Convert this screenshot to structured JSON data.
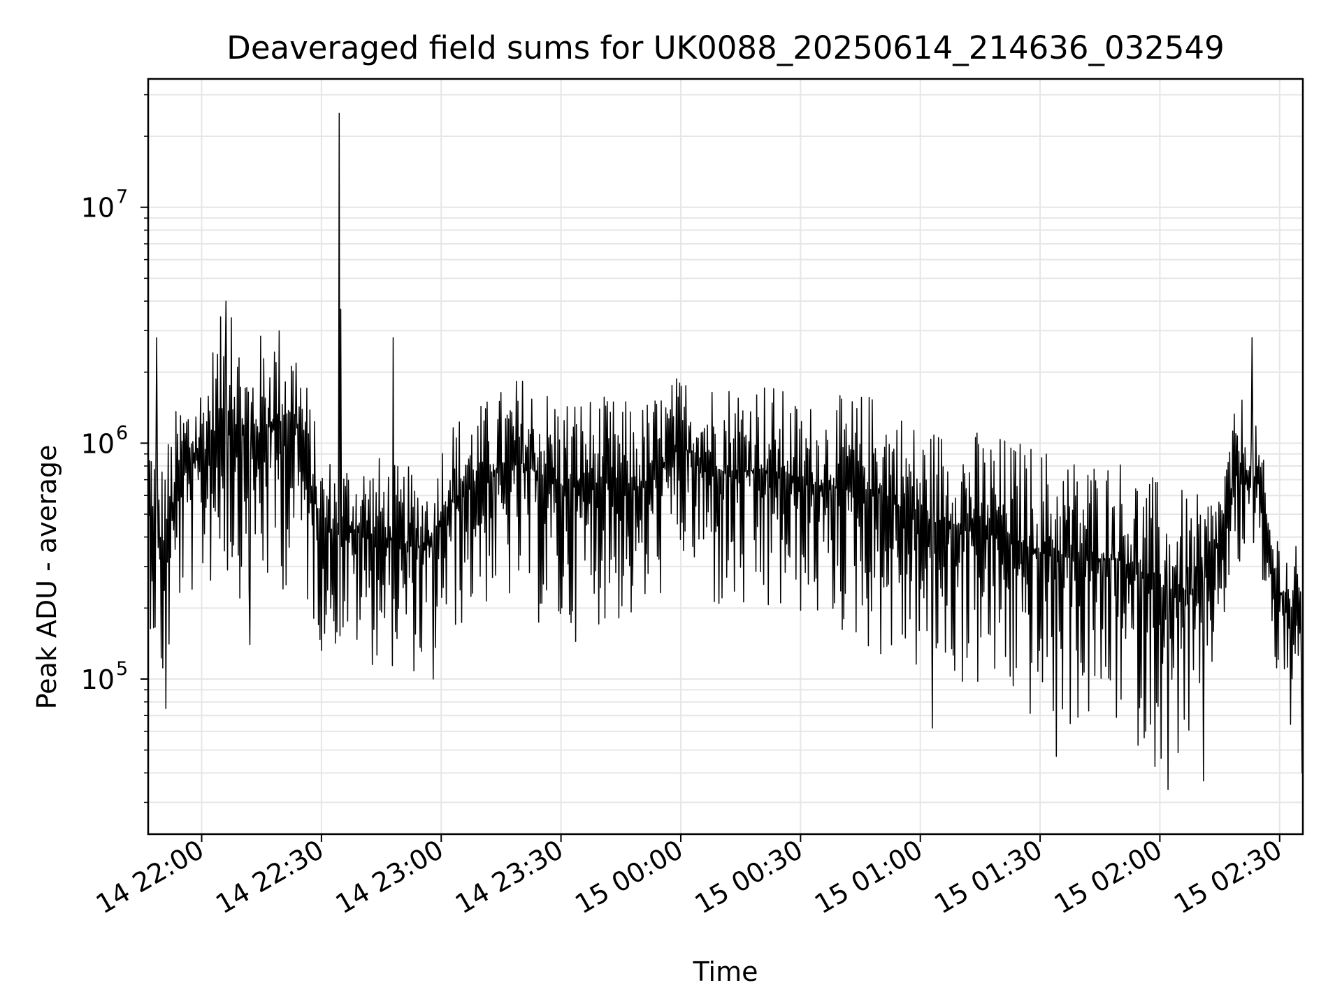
{
  "chart_data": {
    "type": "line",
    "title": "Deaveraged field sums for UK0088_20250614_214636_032549",
    "xlabel": "Time",
    "ylabel": "Peak ADU - average",
    "yscale": "log",
    "xlim": [
      "2025-06-14 21:46:36",
      "2025-06-15 02:35:49"
    ],
    "ylim": [
      22000,
      35000000
    ],
    "grid": true,
    "legend": "none",
    "line_color": "#000000",
    "grid_color": "#e6e6e6",
    "x_ticks": [
      {
        "t": "2025-06-14 22:00",
        "label": "14 22:00"
      },
      {
        "t": "2025-06-14 22:30",
        "label": "14 22:30"
      },
      {
        "t": "2025-06-14 23:00",
        "label": "14 23:00"
      },
      {
        "t": "2025-06-14 23:30",
        "label": "14 23:30"
      },
      {
        "t": "2025-06-15 00:00",
        "label": "15 00:00"
      },
      {
        "t": "2025-06-15 00:30",
        "label": "15 00:30"
      },
      {
        "t": "2025-06-15 01:00",
        "label": "15 01:00"
      },
      {
        "t": "2025-06-15 01:30",
        "label": "15 01:30"
      },
      {
        "t": "2025-06-15 02:00",
        "label": "15 02:00"
      },
      {
        "t": "2025-06-15 02:30",
        "label": "15 02:30"
      }
    ],
    "y_ticks": [
      {
        "value": 100000,
        "base": "10",
        "exp": "5"
      },
      {
        "value": 1000000,
        "base": "10",
        "exp": "6"
      },
      {
        "value": 10000000,
        "base": "10",
        "exp": "7"
      }
    ],
    "envelope": [
      {
        "t": "2025-06-14 21:46:36",
        "low": 190000,
        "high": 1300000
      },
      {
        "t": "2025-06-14 21:50",
        "low": 75000,
        "high": 900000
      },
      {
        "t": "2025-06-14 21:55",
        "low": 200000,
        "high": 1700000
      },
      {
        "t": "2025-06-14 22:00",
        "low": 230000,
        "high": 2000000
      },
      {
        "t": "2025-06-14 22:06",
        "low": 250000,
        "high": 4000000
      },
      {
        "t": "2025-06-14 22:12",
        "low": 200000,
        "high": 2600000
      },
      {
        "t": "2025-06-14 22:18",
        "low": 220000,
        "high": 3500000
      },
      {
        "t": "2025-06-14 22:24",
        "low": 250000,
        "high": 3000000
      },
      {
        "t": "2025-06-14 22:30",
        "low": 130000,
        "high": 900000
      },
      {
        "t": "2025-06-14 22:37",
        "low": 130000,
        "high": 900000
      },
      {
        "t": "2025-06-14 22:44",
        "low": 110000,
        "high": 900000
      },
      {
        "t": "2025-06-14 22:50",
        "low": 110000,
        "high": 800000
      },
      {
        "t": "2025-06-14 22:56",
        "low": 100000,
        "high": 800000
      },
      {
        "t": "2025-06-14 23:02",
        "low": 140000,
        "high": 1300000
      },
      {
        "t": "2025-06-14 23:10",
        "low": 200000,
        "high": 1500000
      },
      {
        "t": "2025-06-14 23:20",
        "low": 200000,
        "high": 2000000
      },
      {
        "t": "2025-06-14 23:30",
        "low": 130000,
        "high": 1700000
      },
      {
        "t": "2025-06-14 23:40",
        "low": 170000,
        "high": 1600000
      },
      {
        "t": "2025-06-14 23:50",
        "low": 160000,
        "high": 1500000
      },
      {
        "t": "2025-06-15 00:00",
        "low": 300000,
        "high": 2000000
      },
      {
        "t": "2025-06-15 00:10",
        "low": 170000,
        "high": 1900000
      },
      {
        "t": "2025-06-15 00:20",
        "low": 160000,
        "high": 2000000
      },
      {
        "t": "2025-06-15 00:30",
        "low": 180000,
        "high": 1500000
      },
      {
        "t": "2025-06-15 00:40",
        "low": 150000,
        "high": 1600000
      },
      {
        "t": "2025-06-15 00:50",
        "low": 120000,
        "high": 1700000
      },
      {
        "t": "2025-06-15 01:00",
        "low": 100000,
        "high": 1200000
      },
      {
        "t": "2025-06-15 01:10",
        "low": 90000,
        "high": 1200000
      },
      {
        "t": "2025-06-15 01:20",
        "low": 80000,
        "high": 1100000
      },
      {
        "t": "2025-06-15 01:30",
        "low": 60000,
        "high": 1000000
      },
      {
        "t": "2025-06-15 01:40",
        "low": 60000,
        "high": 900000
      },
      {
        "t": "2025-06-15 01:50",
        "low": 60000,
        "high": 900000
      },
      {
        "t": "2025-06-15 02:00",
        "low": 40000,
        "high": 700000
      },
      {
        "t": "2025-06-15 02:10",
        "low": 50000,
        "high": 600000
      },
      {
        "t": "2025-06-15 02:15",
        "low": 150000,
        "high": 700000
      },
      {
        "t": "2025-06-15 02:20",
        "low": 250000,
        "high": 1700000
      },
      {
        "t": "2025-06-15 02:25",
        "low": 300000,
        "high": 1100000
      },
      {
        "t": "2025-06-15 02:28",
        "low": 120000,
        "high": 500000
      },
      {
        "t": "2025-06-15 02:32",
        "low": 60000,
        "high": 400000
      },
      {
        "t": "2025-06-15 02:35:49",
        "low": 40000,
        "high": 350000
      }
    ],
    "peaks": [
      {
        "t": "2025-06-14 21:48:40",
        "value": 2800000
      },
      {
        "t": "2025-06-14 21:51:00",
        "value": 75000
      },
      {
        "t": "2025-06-14 22:06:00",
        "value": 4000000
      },
      {
        "t": "2025-06-14 22:07:30",
        "value": 3400000
      },
      {
        "t": "2025-06-14 22:12:00",
        "value": 140000
      },
      {
        "t": "2025-06-14 22:34:30",
        "value": 25000000
      },
      {
        "t": "2025-06-14 22:34:50",
        "value": 3700000
      },
      {
        "t": "2025-06-14 22:48:00",
        "value": 2800000
      },
      {
        "t": "2025-06-14 22:58:00",
        "value": 100000
      },
      {
        "t": "2025-06-15 01:03:00",
        "value": 62000
      },
      {
        "t": "2025-06-15 01:34:00",
        "value": 47000
      },
      {
        "t": "2025-06-15 02:02:00",
        "value": 34000
      },
      {
        "t": "2025-06-15 02:11:00",
        "value": 37000
      },
      {
        "t": "2025-06-15 02:23:00",
        "value": 2800000
      },
      {
        "t": "2025-06-15 02:35:40",
        "value": 40000
      }
    ]
  }
}
